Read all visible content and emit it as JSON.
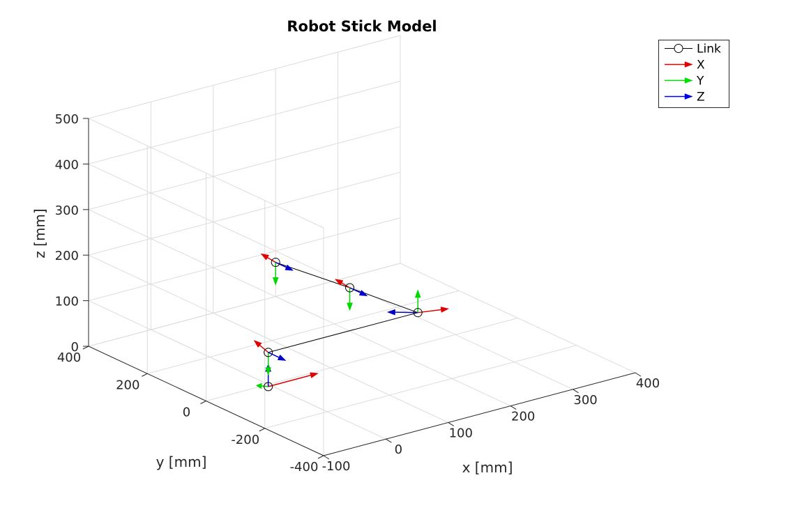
{
  "chart_data": {
    "type": "line",
    "title": "Robot Stick Model",
    "xlabel": "x [mm]",
    "ylabel": "y [mm]",
    "zlabel": "z [mm]",
    "xlim": [
      -100,
      400
    ],
    "ylim": [
      -400,
      400
    ],
    "zlim": [
      0,
      500
    ],
    "x_ticks": [
      "-100",
      "0",
      "100",
      "200",
      "300",
      "400"
    ],
    "y_ticks": [
      "-400",
      "-200",
      "0",
      "200",
      "400"
    ],
    "z_ticks": [
      "0",
      "100",
      "200",
      "300",
      "400",
      "500"
    ],
    "grid": true,
    "legend_location": "top-right",
    "legend": [
      {
        "label": "Link",
        "color": "#000000",
        "marker": "circle"
      },
      {
        "label": "X",
        "color": "#e00000",
        "marker": "arrow"
      },
      {
        "label": "Y",
        "color": "#00e000",
        "marker": "arrow"
      },
      {
        "label": "Z",
        "color": "#0000e0",
        "marker": "arrow"
      }
    ],
    "series": [
      {
        "name": "Link",
        "color": "#000000",
        "points": [
          {
            "x": -5,
            "y": -10,
            "z": 0
          },
          {
            "x": -5,
            "y": -10,
            "z": 75
          },
          {
            "x": 235,
            "y": -10,
            "z": 75
          },
          {
            "x": 220,
            "y": 190,
            "z": 75
          },
          {
            "x": 200,
            "y": 400,
            "z": 75
          }
        ]
      }
    ],
    "frames": [
      {
        "origin": 0,
        "X": [
          0.4,
          0,
          0
        ],
        "Y": [
          -0.05,
          0.1,
          0.0
        ],
        "Z": [
          0,
          0,
          0.25
        ]
      },
      {
        "origin": 1,
        "X": [
          -0.02,
          0.2,
          0.08
        ],
        "Y": [
          0,
          0,
          -0.25
        ],
        "Z": [
          0,
          -0.3,
          0
        ]
      },
      {
        "origin": 2,
        "X": [
          0.2,
          -0.1,
          0
        ],
        "Y": [
          0,
          0,
          0.25
        ],
        "Z": [
          -0.15,
          0.2,
          0.0
        ]
      },
      {
        "origin": 3,
        "X": [
          0,
          0.25,
          0.02
        ],
        "Y": [
          0,
          0,
          -0.25
        ],
        "Z": [
          0,
          -0.3,
          0
        ]
      },
      {
        "origin": 4,
        "X": [
          0,
          0.25,
          0.02
        ],
        "Y": [
          0,
          0,
          -0.25
        ],
        "Z": [
          0,
          -0.3,
          0
        ]
      }
    ]
  }
}
